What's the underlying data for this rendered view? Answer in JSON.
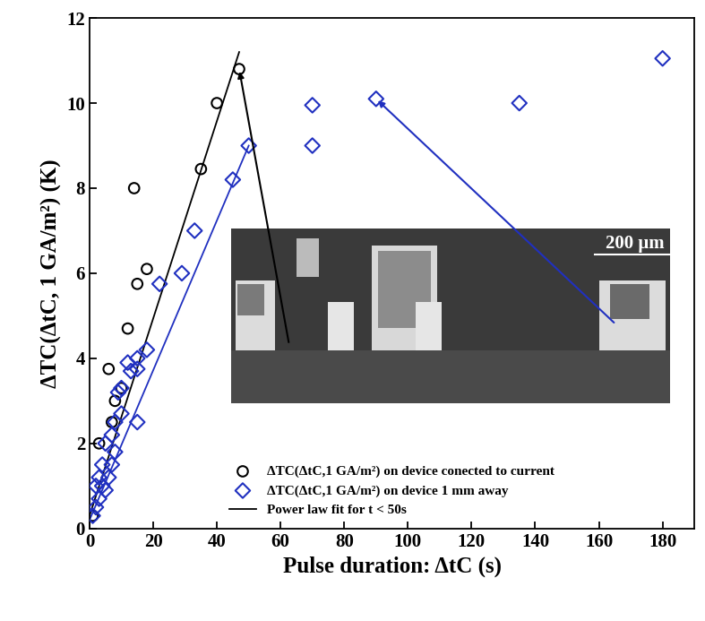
{
  "chart_data": {
    "type": "scatter",
    "x_label": "Pulse duration: ΔtC (s)",
    "y_label": "ΔTC(ΔtC, 1 GA/m²) (K)",
    "annotations": [
      "200 μm"
    ],
    "xlim": [
      0,
      190
    ],
    "xticks": [
      0,
      20,
      40,
      60,
      80,
      100,
      120,
      140,
      160,
      180
    ],
    "ylim": [
      0,
      12
    ],
    "yticks": [
      0,
      2,
      4,
      6,
      8,
      10,
      12
    ],
    "legend": "lower center",
    "grid": false,
    "series": [
      {
        "name": "ΔTC(ΔtC,1 GA/m²) on device conected to current",
        "type": "scatter",
        "marker": "o",
        "color": "#000000",
        "x": [
          1,
          3,
          6,
          7,
          8,
          10,
          12,
          14,
          15,
          18,
          35,
          40,
          47
        ],
        "values": [
          0.3,
          2.0,
          3.75,
          2.5,
          3.0,
          3.3,
          4.7,
          8.0,
          5.75,
          6.1,
          8.45,
          10.0,
          10.8
        ]
      },
      {
        "name": "ΔTC(ΔtC,1 GA/m²) on device 1 mm away",
        "type": "scatter",
        "marker": "D",
        "color": "#2030c0",
        "x": [
          1,
          2,
          2,
          3,
          3,
          4,
          4,
          5,
          5,
          6,
          7,
          7,
          8,
          8,
          9,
          10,
          10,
          12,
          13,
          15,
          15,
          15,
          18,
          22,
          29,
          33,
          45,
          50,
          70,
          70,
          90,
          135,
          180
        ],
        "values": [
          0.3,
          0.5,
          1.0,
          0.7,
          1.2,
          1.0,
          1.5,
          0.9,
          2.0,
          1.2,
          1.5,
          2.2,
          1.8,
          2.5,
          3.2,
          2.7,
          3.3,
          3.9,
          3.7,
          2.5,
          3.75,
          4.0,
          4.2,
          5.75,
          6.0,
          7.0,
          8.2,
          9.0,
          9.0,
          9.95,
          10.1,
          10.0,
          11.05
        ]
      },
      {
        "name": "Power law fit for t < 50s",
        "type": "line",
        "line_style": "solid",
        "color": "#000000",
        "x": [
          0,
          47
        ],
        "values": [
          0.3,
          11.2
        ]
      },
      {
        "type": "line",
        "line_style": "solid",
        "color": "#2030c0",
        "x": [
          0,
          50
        ],
        "values": [
          0.2,
          9.0
        ]
      }
    ]
  }
}
